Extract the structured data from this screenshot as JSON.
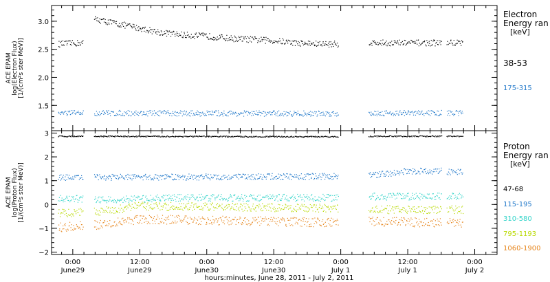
{
  "xlabel": "hours:minutes, June 28, 2011 - July  2, 2011",
  "x_ticks": [
    {
      "t": 0,
      "time": "0:00",
      "date": "June29"
    },
    {
      "t": 12,
      "time": "12:00",
      "date": "June29"
    },
    {
      "t": 24,
      "time": "0:00",
      "date": "June30"
    },
    {
      "t": 36,
      "time": "12:00",
      "date": "June30"
    },
    {
      "t": 48,
      "time": "0:00",
      "date": "July 1"
    },
    {
      "t": 60,
      "time": "12:00",
      "date": "July 1"
    },
    {
      "t": 72,
      "time": "0:00",
      "date": "July 2"
    }
  ],
  "chart_data": [
    {
      "type": "scatter",
      "panel": "electron",
      "ylabel": [
        "ACE EPAM",
        "log(Electron Flux)",
        "[1/(cm²s ster MeV)]"
      ],
      "ylim": [
        1.05,
        3.28
      ],
      "xlim_hours": [
        -3.8,
        76.0
      ],
      "y_ticks": [
        1.5,
        2.0,
        2.5,
        3.0
      ],
      "y_tick_labels": [
        "1.5",
        "2.0",
        "2.5",
        "3.0"
      ],
      "legend_title": [
        "Electron",
        "Energy ran",
        "[keV]"
      ],
      "series": [
        {
          "name": "38-53",
          "color": "#000000",
          "segments": [
            {
              "x": [
                -2.6,
                1.8
              ],
              "y": [
                2.6,
                2.62
              ]
            },
            {
              "x": [
                3.8,
                4.6,
                8,
                12,
                16,
                20,
                24,
                28,
                32,
                36,
                40,
                44,
                47.5
              ],
              "y": [
                3.05,
                3.03,
                2.96,
                2.88,
                2.8,
                2.76,
                2.74,
                2.7,
                2.68,
                2.66,
                2.62,
                2.6,
                2.6
              ]
            },
            {
              "x": [
                53.0,
                60,
                66.0
              ],
              "y": [
                2.62,
                2.62,
                2.62
              ]
            },
            {
              "x": [
                67.0,
                69.8
              ],
              "y": [
                2.62,
                2.63
              ]
            }
          ]
        },
        {
          "name": "175-315",
          "color": "#1f77c9",
          "segments": [
            {
              "x": [
                -2.6,
                1.8
              ],
              "y": [
                1.37,
                1.37
              ]
            },
            {
              "x": [
                3.8,
                47.5
              ],
              "y": [
                1.37,
                1.36
              ]
            },
            {
              "x": [
                53.0,
                66.0
              ],
              "y": [
                1.37,
                1.37
              ]
            },
            {
              "x": [
                67.0,
                69.8
              ],
              "y": [
                1.37,
                1.37
              ]
            }
          ]
        }
      ]
    },
    {
      "type": "scatter",
      "panel": "proton",
      "ylabel": [
        "ACE EPAM",
        "log(Proton Flux)",
        "[1/(cm²s ster MeV)]"
      ],
      "ylim": [
        -2.1,
        3.1
      ],
      "xlim_hours": [
        -3.8,
        76.0
      ],
      "y_ticks": [
        -2,
        -1,
        0,
        1,
        2,
        3
      ],
      "y_tick_labels": [
        "−2",
        "−1",
        "0",
        "1",
        "2",
        "3"
      ],
      "legend_title": [
        "Proton",
        "Energy ran",
        "[keV]"
      ],
      "series": [
        {
          "name": "47-68",
          "color": "#000000",
          "segments": [
            {
              "x": [
                -2.6,
                1.8
              ],
              "y": [
                2.88,
                2.88
              ]
            },
            {
              "x": [
                3.8,
                47.5
              ],
              "y": [
                2.88,
                2.86
              ]
            },
            {
              "x": [
                53.0,
                66.0
              ],
              "y": [
                2.88,
                2.88
              ]
            },
            {
              "x": [
                67.0,
                69.8
              ],
              "y": [
                2.88,
                2.88
              ]
            }
          ]
        },
        {
          "name": "115-195",
          "color": "#1f77c9",
          "segments": [
            {
              "x": [
                -2.6,
                1.8
              ],
              "y": [
                1.15,
                1.15
              ]
            },
            {
              "x": [
                3.8,
                47.5
              ],
              "y": [
                1.15,
                1.2
              ]
            },
            {
              "x": [
                53.0,
                56,
                60,
                66.0
              ],
              "y": [
                1.25,
                1.3,
                1.42,
                1.42
              ]
            },
            {
              "x": [
                67.0,
                69.8
              ],
              "y": [
                1.38,
                1.38
              ]
            }
          ]
        },
        {
          "name": "310-580",
          "color": "#2fd3c8",
          "segments": [
            {
              "x": [
                -2.6,
                1.8
              ],
              "y": [
                0.25,
                0.25
              ]
            },
            {
              "x": [
                3.8,
                20,
                47.5
              ],
              "y": [
                0.2,
                0.3,
                0.3
              ]
            },
            {
              "x": [
                53.0,
                66.0
              ],
              "y": [
                0.35,
                0.35
              ]
            },
            {
              "x": [
                67.0,
                69.8
              ],
              "y": [
                0.35,
                0.35
              ]
            }
          ]
        },
        {
          "name": "795-1193",
          "color": "#b8d900",
          "segments": [
            {
              "x": [
                -2.6,
                1.8
              ],
              "y": [
                -0.35,
                -0.3
              ]
            },
            {
              "x": [
                3.8,
                12,
                47.5
              ],
              "y": [
                -0.3,
                -0.05,
                -0.15
              ]
            },
            {
              "x": [
                53.0,
                66.0
              ],
              "y": [
                -0.2,
                -0.2
              ]
            },
            {
              "x": [
                67.0,
                69.8
              ],
              "y": [
                -0.2,
                -0.2
              ]
            }
          ]
        },
        {
          "name": "1060-1900",
          "color": "#e6841a",
          "segments": [
            {
              "x": [
                -2.6,
                1.8
              ],
              "y": [
                -0.95,
                -0.85
              ]
            },
            {
              "x": [
                3.8,
                12,
                47.5
              ],
              "y": [
                -0.85,
                -0.6,
                -0.75
              ]
            },
            {
              "x": [
                53.0,
                66.0
              ],
              "y": [
                -0.7,
                -0.75
              ]
            },
            {
              "x": [
                67.0,
                69.8
              ],
              "y": [
                -0.75,
                -0.75
              ]
            }
          ]
        }
      ]
    }
  ]
}
